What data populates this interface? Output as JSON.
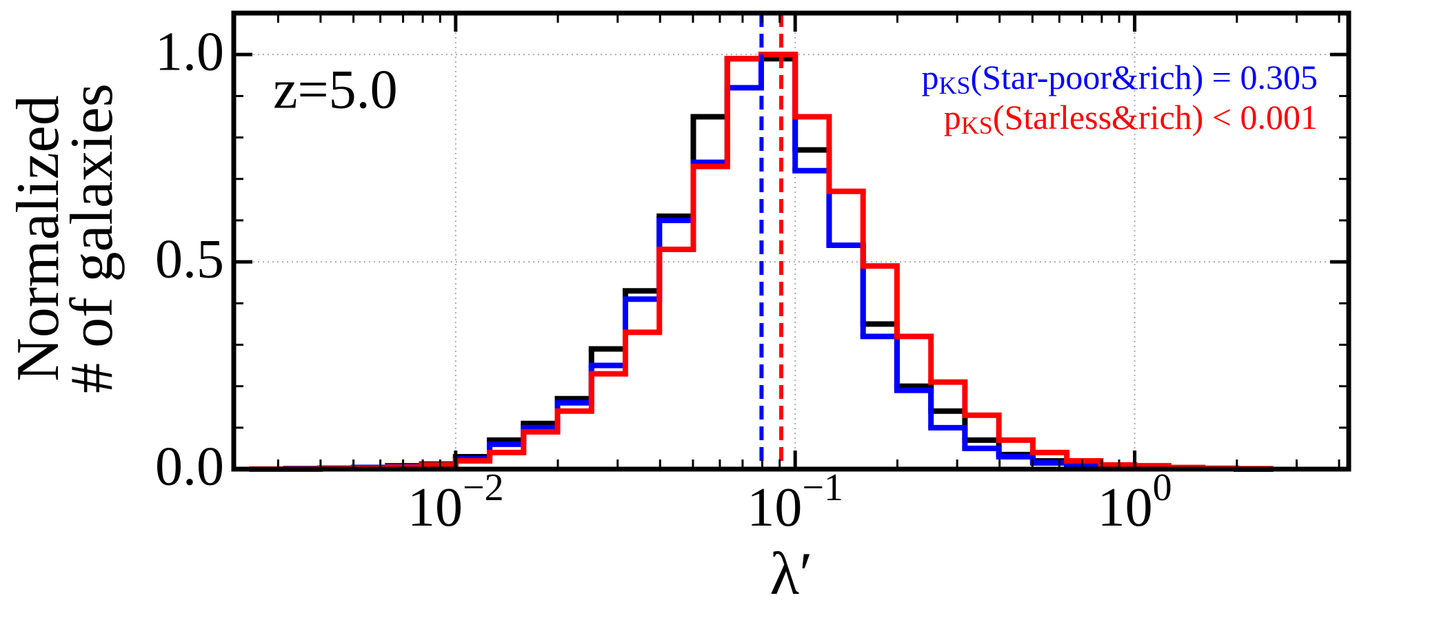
{
  "chart_data": {
    "type": "histogram",
    "xlabel": "λ′",
    "ylabel": [
      "Normalized",
      "# of galaxies"
    ],
    "xscale": "log",
    "xlim": [
      0.00222,
      4.27
    ],
    "ylim": [
      0,
      1.1
    ],
    "xticks": [
      {
        "value": 0.01,
        "label": "10",
        "exponent": "−2"
      },
      {
        "value": 0.1,
        "label": "10",
        "exponent": "−1"
      },
      {
        "value": 1,
        "label": "10",
        "exponent": "0"
      }
    ],
    "yticks": [
      {
        "value": 0,
        "label": "0.0"
      },
      0.5,
      {
        "value": 1,
        "label": "1.0"
      }
    ],
    "grid": true,
    "bins": [
      0.002512,
      0.003162,
      0.003981,
      0.005012,
      0.00631,
      0.007943,
      0.01,
      0.01259,
      0.01585,
      0.01995,
      0.02512,
      0.03162,
      0.03981,
      0.05012,
      0.0631,
      0.07943,
      0.1,
      0.1259,
      0.1585,
      0.1995,
      0.2512,
      0.3162,
      0.3981,
      0.5012,
      0.631,
      0.7943,
      1,
      1.259,
      1.585,
      1.995,
      2.512
    ],
    "series": [
      {
        "color": "#000000",
        "values": [
          0,
          0.001,
          0.002,
          0.004,
          0.008,
          0.012,
          0.03,
          0.07,
          0.11,
          0.17,
          0.29,
          0.43,
          0.61,
          0.85,
          0.99,
          0.99,
          0.77,
          0.54,
          0.35,
          0.2,
          0.14,
          0.07,
          0.035,
          0.02,
          0.01,
          0.005,
          0.003,
          0.002,
          0.001,
          0
        ]
      },
      {
        "color": "#0000ff",
        "values": [
          0,
          0.001,
          0.002,
          0.004,
          0.007,
          0.01,
          0.025,
          0.06,
          0.1,
          0.16,
          0.25,
          0.41,
          0.6,
          0.74,
          0.92,
          1,
          0.72,
          0.54,
          0.32,
          0.19,
          0.1,
          0.05,
          0.03,
          0.015,
          0.008,
          0.004,
          0.002,
          0.001,
          0.001,
          0
        ]
      },
      {
        "color": "#ff0000",
        "values": [
          0,
          0,
          0.001,
          0.002,
          0.005,
          0.01,
          0.02,
          0.04,
          0.09,
          0.14,
          0.23,
          0.33,
          0.53,
          0.73,
          0.99,
          1,
          0.85,
          0.67,
          0.49,
          0.32,
          0.21,
          0.13,
          0.07,
          0.04,
          0.02,
          0.01,
          0.008,
          0.004,
          0.002,
          0.001
        ]
      }
    ],
    "vlines": [
      {
        "value": 0.0796,
        "color": "#0000ff"
      },
      {
        "value": 0.091,
        "color": "#ff0000"
      }
    ],
    "annotations": [
      {
        "text": "z=5.0",
        "color": "#000000"
      },
      {
        "prefix": "p",
        "sub": "KS",
        "text": "(Star-poor&rich) = 0.305",
        "color": "#0000ff"
      },
      {
        "prefix": "p",
        "sub": "KS",
        "text": "(Starless&rich) < 0.001",
        "color": "#ff0000"
      }
    ]
  }
}
